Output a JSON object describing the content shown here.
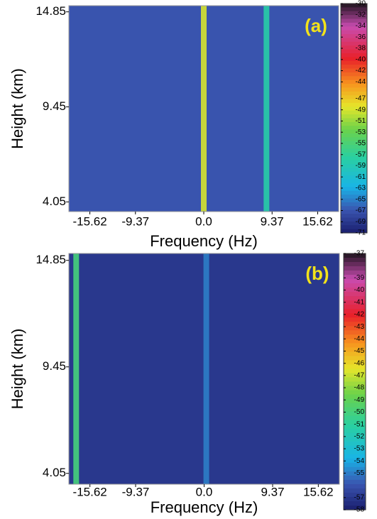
{
  "chart_data": [
    {
      "type": "heatmap",
      "panel_label": "(a)",
      "x_label": "Frequency (Hz)",
      "y_label": "Height (km)",
      "xlim": [
        -18.5,
        18.5
      ],
      "xticks": [
        -15.62,
        -9.37,
        {
          "value": 0,
          "label": "0.0"
        },
        9.37,
        15.62
      ],
      "ylim": [
        3.5,
        15.2
      ],
      "yticks": [
        4.05,
        9.45,
        14.85
      ],
      "clim": [
        -71,
        -30
      ],
      "cticks": [
        -30,
        -32,
        -34,
        -36,
        -38,
        -40,
        -42,
        -44,
        -47,
        -49,
        -51,
        -53,
        -55,
        -57,
        -59,
        -61,
        -63,
        -65,
        -67,
        -69,
        -71
      ],
      "background": -67,
      "streaks": [
        {
          "x": 0,
          "value": -49
        },
        {
          "x": 8.6,
          "value": -58
        }
      ]
    },
    {
      "type": "heatmap",
      "panel_label": "(b)",
      "x_label": "Frequency (Hz)",
      "y_label": "Height (km)",
      "xlim": [
        -18.5,
        18.5
      ],
      "xticks": [
        -15.62,
        -9.37,
        {
          "value": 0,
          "label": "0.0"
        },
        9.37,
        15.62
      ],
      "ylim": [
        3.5,
        15.2
      ],
      "yticks": [
        4.05,
        9.45,
        14.85
      ],
      "clim": [
        -58,
        -37
      ],
      "cticks": [
        -37,
        -39,
        -40,
        -41,
        -42,
        -43,
        -44,
        -45,
        -46,
        -47,
        -48,
        -49,
        -50,
        -51,
        -52,
        -53,
        -54,
        -55,
        -57,
        -58
      ],
      "background": -57,
      "streaks": [
        {
          "x": -17.5,
          "value": -50
        },
        {
          "x": 0.3,
          "value": -55
        }
      ]
    }
  ]
}
